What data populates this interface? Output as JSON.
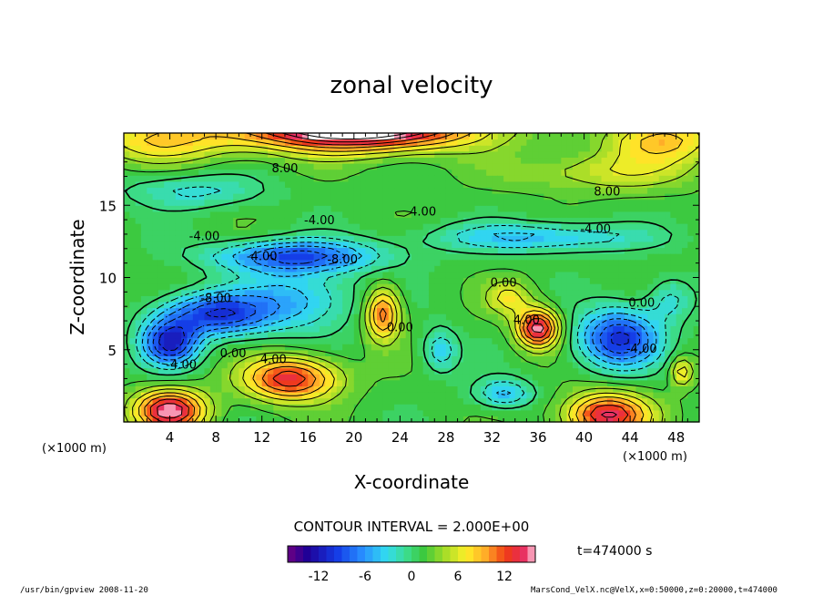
{
  "chart_data": {
    "type": "heatmap",
    "subtype": "filled-contour",
    "title": "zonal velocity",
    "xlabel": "X-coordinate",
    "ylabel": "Z-coordinate",
    "x_unit_left": "(×1000 m)",
    "x_unit_right": "(×1000 m)",
    "xlim": [
      0,
      50
    ],
    "ylim": [
      0,
      20
    ],
    "xticks": [
      4,
      8,
      12,
      16,
      20,
      24,
      28,
      32,
      36,
      40,
      44,
      48
    ],
    "yticks": [
      5,
      10,
      15
    ],
    "contour_interval_text": "CONTOUR INTERVAL = 2.000E+00",
    "time_text": "t=474000 s",
    "colorbar": {
      "ticks": [
        -12,
        -6,
        0,
        6,
        12
      ],
      "range": [
        -16,
        16
      ],
      "bins": 32
    },
    "contour_labels": [
      {
        "text": "8.00",
        "x": 14,
        "y": 17.6
      },
      {
        "text": "8.00",
        "x": 42,
        "y": 16.0
      },
      {
        "text": "4.00",
        "x": 26,
        "y": 14.6
      },
      {
        "text": "-4.00",
        "x": 17,
        "y": 14.0
      },
      {
        "text": "-4.00",
        "x": 7,
        "y": 12.9
      },
      {
        "text": "-4.00",
        "x": 41,
        "y": 13.4
      },
      {
        "text": "-4.00",
        "x": 12,
        "y": 11.5
      },
      {
        "text": "-8.00",
        "x": 19,
        "y": 11.3
      },
      {
        "text": "-8.00",
        "x": 8,
        "y": 8.6
      },
      {
        "text": "0.00",
        "x": 33,
        "y": 9.7
      },
      {
        "text": "0.00",
        "x": 45,
        "y": 8.3
      },
      {
        "text": "0.00",
        "x": 24,
        "y": 6.6
      },
      {
        "text": "0.00",
        "x": 9.5,
        "y": 4.8
      },
      {
        "text": "4.00",
        "x": 35,
        "y": 7.1
      },
      {
        "text": "4.00",
        "x": 13,
        "y": 4.4
      },
      {
        "text": "-4.00",
        "x": 45,
        "y": 5.1
      },
      {
        "text": "-4.00",
        "x": 5,
        "y": 4.0
      }
    ],
    "field_features": [
      {
        "x": 20,
        "y": 20.5,
        "amp": 20,
        "sx": 10,
        "sy": 1.6
      },
      {
        "x": 3,
        "y": 19.5,
        "amp": 6,
        "sx": 6,
        "sy": 1.5
      },
      {
        "x": 47,
        "y": 19.5,
        "amp": 7,
        "sx": 5,
        "sy": 1.5
      },
      {
        "x": 42,
        "y": 17.3,
        "amp": 4,
        "sx": 8,
        "sy": 1.3
      },
      {
        "x": 6,
        "y": 16.0,
        "amp": -4,
        "sx": 6,
        "sy": 1.2
      },
      {
        "x": 15,
        "y": 11.5,
        "amp": -10,
        "sx": 7,
        "sy": 1.1
      },
      {
        "x": 36,
        "y": 12.8,
        "amp": -6,
        "sx": 9,
        "sy": 1.0
      },
      {
        "x": 8,
        "y": 7.5,
        "amp": -11,
        "sx": 4.5,
        "sy": 1.5
      },
      {
        "x": 4,
        "y": 5.5,
        "amp": -12,
        "sx": 2.5,
        "sy": 1.6
      },
      {
        "x": 15,
        "y": 8.5,
        "amp": -6,
        "sx": 5,
        "sy": 2.2
      },
      {
        "x": 43,
        "y": 5.8,
        "amp": -12,
        "sx": 3.5,
        "sy": 2.0
      },
      {
        "x": 22.5,
        "y": 7.5,
        "amp": 10,
        "sx": 1.5,
        "sy": 1.8
      },
      {
        "x": 36,
        "y": 6.5,
        "amp": 14,
        "sx": 1.8,
        "sy": 1.3
      },
      {
        "x": 33.5,
        "y": 8.6,
        "amp": 5,
        "sx": 2.0,
        "sy": 1.2
      },
      {
        "x": 14.5,
        "y": 3.0,
        "amp": 12,
        "sx": 4,
        "sy": 1.5
      },
      {
        "x": 4,
        "y": 0.8,
        "amp": 14,
        "sx": 3,
        "sy": 1.4
      },
      {
        "x": 42,
        "y": 0.5,
        "amp": 13,
        "sx": 3.5,
        "sy": 1.5
      },
      {
        "x": 48.5,
        "y": 3.5,
        "amp": 6,
        "sx": 1.0,
        "sy": 1.0
      },
      {
        "x": 33,
        "y": 2.0,
        "amp": -6,
        "sx": 2.5,
        "sy": 1.0
      },
      {
        "x": 27.5,
        "y": 5.0,
        "amp": -5,
        "sx": 1.5,
        "sy": 1.5
      },
      {
        "x": 47.5,
        "y": 8.5,
        "amp": -4,
        "sx": 2.0,
        "sy": 1.5
      }
    ]
  },
  "footer": {
    "left": "/usr/bin/gpview  2008-11-20",
    "right": "MarsCond_VelX.nc@VelX,x=0:50000,z=0:20000,t=474000"
  }
}
